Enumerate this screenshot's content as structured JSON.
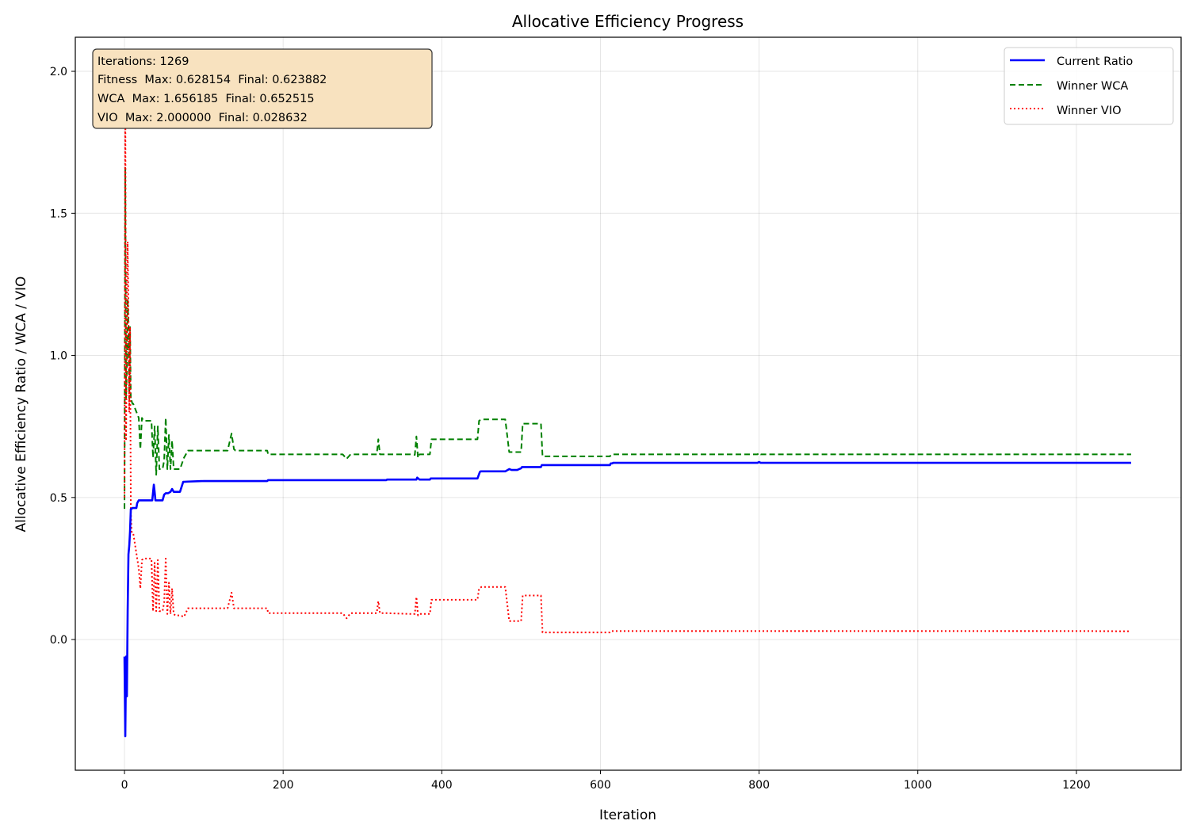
{
  "chart_data": {
    "type": "line",
    "title": "Allocative Efficiency Progress",
    "xlabel": "Iteration",
    "ylabel": "Allocative Efficiency Ratio / WCA / VIO",
    "xlim": [
      -62,
      1332
    ],
    "ylim": [
      -0.46,
      2.12
    ],
    "xticks": [
      0,
      200,
      400,
      600,
      800,
      1000,
      1200
    ],
    "yticks": [
      0.0,
      0.5,
      1.0,
      1.5,
      2.0
    ],
    "xtick_labels": [
      "0",
      "200",
      "400",
      "600",
      "800",
      "1000",
      "1200"
    ],
    "ytick_labels": [
      "0.0",
      "0.5",
      "1.0",
      "1.5",
      "2.0"
    ],
    "grid": true,
    "legend_position": "top-right",
    "stats_box": {
      "lines": [
        "Iterations: 1269",
        "Fitness  Max: 0.628154  Final: 0.623882",
        "WCA  Max: 1.656185  Final: 0.652515",
        "VIO  Max: 2.000000  Final: 0.028632"
      ]
    },
    "series": [
      {
        "name": "Current Ratio",
        "color": "#0000ff",
        "style": "solid",
        "x": [
          0,
          1,
          2,
          3,
          4,
          5,
          6,
          7,
          8,
          9,
          10,
          15,
          16,
          18,
          19,
          20,
          21,
          25,
          30,
          35,
          37,
          38,
          39,
          40,
          45,
          48,
          50,
          52,
          55,
          58,
          60,
          62,
          65,
          70,
          74,
          75,
          80,
          100,
          120,
          140,
          160,
          180,
          181,
          200,
          250,
          300,
          330,
          331,
          360,
          368,
          369,
          372,
          375,
          380,
          385,
          386,
          400,
          445,
          448,
          449,
          450,
          480,
          485,
          488,
          495,
          500,
          501,
          525,
          526,
          560,
          600,
          612,
          613,
          614,
          615,
          616,
          650,
          700,
          760,
          798,
          800,
          802,
          850,
          900,
          1000,
          1100,
          1200,
          1269
        ],
        "y": [
          -0.06,
          -0.34,
          -0.06,
          -0.2,
          0.1,
          0.3,
          0.33,
          0.38,
          0.46,
          0.46,
          0.463,
          0.463,
          0.48,
          0.49,
          0.49,
          0.49,
          0.49,
          0.49,
          0.49,
          0.49,
          0.545,
          0.52,
          0.49,
          0.49,
          0.49,
          0.49,
          0.51,
          0.515,
          0.515,
          0.52,
          0.53,
          0.52,
          0.52,
          0.52,
          0.555,
          0.555,
          0.556,
          0.558,
          0.558,
          0.558,
          0.558,
          0.558,
          0.561,
          0.561,
          0.561,
          0.561,
          0.561,
          0.563,
          0.563,
          0.563,
          0.57,
          0.563,
          0.563,
          0.563,
          0.563,
          0.567,
          0.567,
          0.567,
          0.59,
          0.592,
          0.592,
          0.592,
          0.6,
          0.597,
          0.597,
          0.603,
          0.607,
          0.607,
          0.614,
          0.614,
          0.614,
          0.614,
          0.62,
          0.62,
          0.62,
          0.622,
          0.622,
          0.622,
          0.622,
          0.622,
          0.625,
          0.622,
          0.622,
          0.622,
          0.622,
          0.622,
          0.622,
          0.622
        ]
      },
      {
        "name": "Winner WCA",
        "color": "#008000",
        "style": "dashed",
        "x": [
          0,
          1,
          2,
          3,
          4,
          5,
          6,
          7,
          8,
          9,
          10,
          11,
          18,
          20,
          22,
          24,
          30,
          34,
          36,
          38,
          40,
          42,
          44,
          46,
          48,
          50,
          52,
          54,
          56,
          58,
          60,
          62,
          64,
          70,
          75,
          80,
          100,
          130,
          135,
          138,
          140,
          180,
          181,
          200,
          275,
          280,
          285,
          300,
          318,
          320,
          322,
          330,
          360,
          366,
          368,
          370,
          372,
          385,
          387,
          389,
          400,
          445,
          447,
          450,
          480,
          485,
          487,
          500,
          502,
          525,
          527,
          560,
          600,
          612,
          614,
          616,
          650,
          700,
          760,
          798,
          800,
          802,
          900,
          1000,
          1100,
          1200,
          1269
        ],
        "y": [
          0.46,
          1.66,
          0.85,
          0.95,
          1.2,
          1.1,
          0.85,
          1.1,
          0.84,
          0.84,
          0.83,
          0.83,
          0.78,
          0.67,
          0.78,
          0.77,
          0.77,
          0.77,
          0.64,
          0.75,
          0.58,
          0.75,
          0.6,
          0.6,
          0.6,
          0.63,
          0.78,
          0.6,
          0.72,
          0.6,
          0.7,
          0.6,
          0.6,
          0.6,
          0.64,
          0.665,
          0.665,
          0.665,
          0.725,
          0.67,
          0.665,
          0.665,
          0.652,
          0.652,
          0.652,
          0.636,
          0.652,
          0.652,
          0.652,
          0.705,
          0.652,
          0.652,
          0.652,
          0.65,
          0.715,
          0.64,
          0.652,
          0.652,
          0.705,
          0.705,
          0.705,
          0.705,
          0.77,
          0.775,
          0.775,
          0.66,
          0.66,
          0.66,
          0.76,
          0.76,
          0.645,
          0.645,
          0.645,
          0.645,
          0.652,
          0.652,
          0.652,
          0.652,
          0.652,
          0.652,
          0.657,
          0.652,
          0.652,
          0.652,
          0.652,
          0.652,
          0.652
        ]
      },
      {
        "name": "Winner VIO",
        "color": "#ff0000",
        "style": "dotted",
        "x": [
          0,
          1,
          2,
          3,
          4,
          5,
          6,
          7,
          8,
          9,
          10,
          11,
          18,
          20,
          22,
          24,
          30,
          34,
          36,
          38,
          40,
          42,
          44,
          46,
          48,
          50,
          52,
          54,
          56,
          58,
          60,
          62,
          64,
          70,
          75,
          80,
          100,
          130,
          135,
          138,
          140,
          180,
          181,
          200,
          275,
          280,
          285,
          300,
          318,
          320,
          322,
          330,
          360,
          366,
          368,
          370,
          372,
          385,
          387,
          389,
          400,
          445,
          447,
          450,
          480,
          485,
          487,
          500,
          502,
          525,
          527,
          560,
          600,
          612,
          614,
          616,
          650,
          700,
          760,
          798,
          800,
          802,
          900,
          1000,
          1100,
          1200,
          1269
        ],
        "y": [
          0.5,
          2.0,
          0.7,
          1.1,
          1.4,
          1.15,
          0.8,
          1.1,
          0.45,
          0.38,
          0.375,
          0.375,
          0.25,
          0.18,
          0.28,
          0.285,
          0.285,
          0.285,
          0.1,
          0.27,
          0.1,
          0.28,
          0.1,
          0.1,
          0.1,
          0.13,
          0.285,
          0.09,
          0.2,
          0.09,
          0.18,
          0.09,
          0.085,
          0.085,
          0.08,
          0.11,
          0.11,
          0.11,
          0.165,
          0.11,
          0.11,
          0.11,
          0.093,
          0.093,
          0.093,
          0.075,
          0.093,
          0.093,
          0.093,
          0.135,
          0.093,
          0.093,
          0.09,
          0.09,
          0.15,
          0.085,
          0.09,
          0.09,
          0.14,
          0.14,
          0.14,
          0.14,
          0.18,
          0.185,
          0.185,
          0.065,
          0.065,
          0.065,
          0.155,
          0.155,
          0.025,
          0.025,
          0.025,
          0.025,
          0.03,
          0.03,
          0.03,
          0.03,
          0.03,
          0.03,
          0.03,
          0.03,
          0.03,
          0.03,
          0.03,
          0.03,
          0.029
        ]
      }
    ]
  }
}
